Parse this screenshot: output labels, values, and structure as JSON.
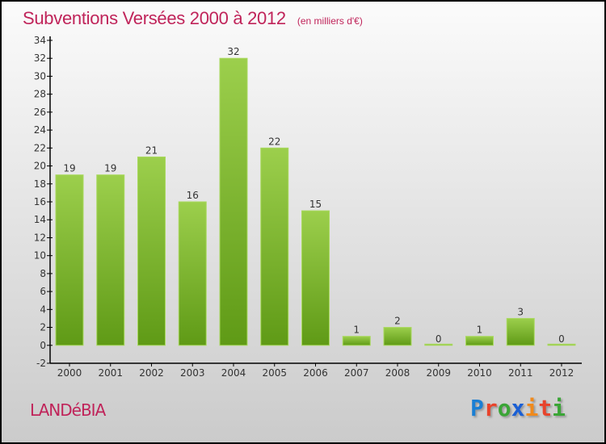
{
  "header": {
    "title": "Subventions Versées 2000 à 2012",
    "subtitle": "(en milliers d'€)"
  },
  "footer": {
    "town": "LANDéBIA",
    "logo": "Proxiti"
  },
  "colors": {
    "bar_top": "#9ccf4c",
    "bar_bottom": "#5f9a16",
    "title": "#c0245a"
  },
  "chart_data": {
    "type": "bar",
    "title": "Subventions Versées 2000 à 2012",
    "ylabel": "(en milliers d'€)",
    "xlabel": "",
    "categories": [
      "2000",
      "2001",
      "2002",
      "2003",
      "2004",
      "2005",
      "2006",
      "2007",
      "2008",
      "2009",
      "2010",
      "2011",
      "2012"
    ],
    "values": [
      19,
      19,
      21,
      16,
      32,
      22,
      15,
      1,
      2,
      0,
      1,
      3,
      0
    ],
    "ylim": [
      -2,
      34
    ],
    "yticks": [
      -2,
      0,
      2,
      4,
      6,
      8,
      10,
      12,
      14,
      16,
      18,
      20,
      22,
      24,
      26,
      28,
      30,
      32,
      34
    ],
    "grid": false
  }
}
